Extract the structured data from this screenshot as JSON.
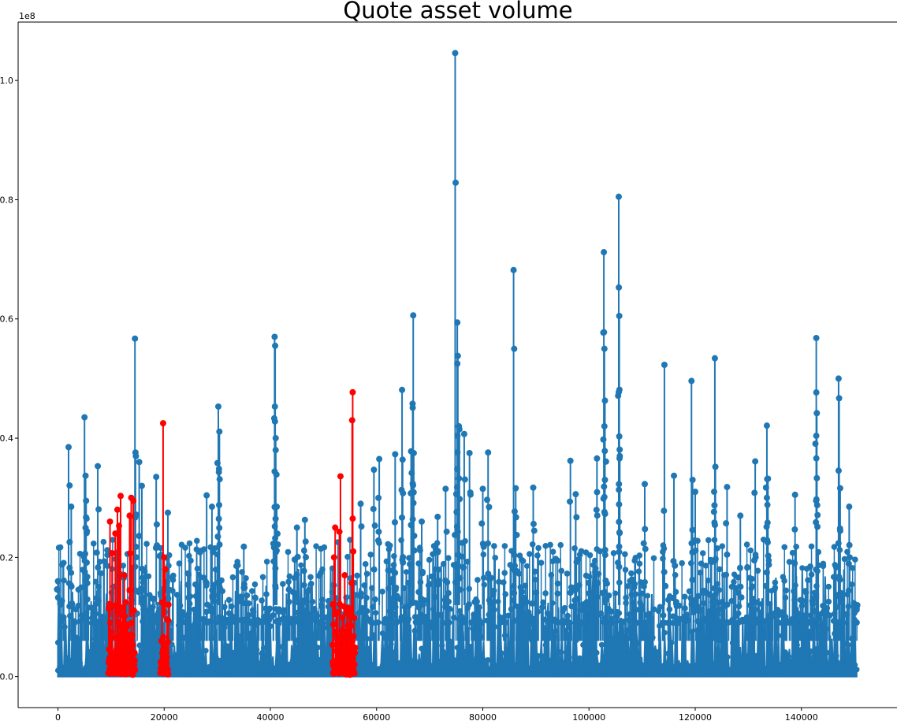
{
  "chart_data": {
    "type": "line",
    "title": "Quote asset volume",
    "xlabel": "",
    "ylabel": "",
    "y_offset_label": "1e8",
    "xlim": [
      -7500,
      158000
    ],
    "ylim": [
      -0.052,
      1.098
    ],
    "x_ticks": [
      0,
      20000,
      40000,
      60000,
      80000,
      100000,
      120000,
      140000
    ],
    "x_tick_labels": [
      "0",
      "20000",
      "40000",
      "60000",
      "80000",
      "100000",
      "120000",
      "140000"
    ],
    "y_ticks": [
      0.0,
      0.2,
      0.4,
      0.6,
      0.8,
      1.0
    ],
    "y_tick_labels": [
      "0.0",
      "0.2",
      "0.4",
      "0.6",
      "0.8",
      "1.0"
    ],
    "grid": false,
    "series_color": "#1f77b4",
    "highlight_color": "#ff0000",
    "x_range": [
      0,
      150500
    ],
    "series": [
      {
        "name": "",
        "color": "#1f77b4",
        "marker": "circle",
        "peaks": [
          [
            0,
            0.16
          ],
          [
            2000,
            0.385
          ],
          [
            2500,
            0.285
          ],
          [
            5000,
            0.435
          ],
          [
            5200,
            0.337
          ],
          [
            5300,
            0.295
          ],
          [
            7500,
            0.353
          ],
          [
            14500,
            0.567
          ],
          [
            14600,
            0.376
          ],
          [
            15300,
            0.36
          ],
          [
            15800,
            0.32
          ],
          [
            18500,
            0.335
          ],
          [
            20700,
            0.275
          ],
          [
            28000,
            0.304
          ],
          [
            29000,
            0.285
          ],
          [
            30200,
            0.453
          ],
          [
            30400,
            0.411
          ],
          [
            30300,
            0.343
          ],
          [
            35000,
            0.218
          ],
          [
            40800,
            0.57
          ],
          [
            40900,
            0.555
          ],
          [
            40850,
            0.453
          ],
          [
            41000,
            0.4
          ],
          [
            41000,
            0.38
          ],
          [
            41200,
            0.285
          ],
          [
            45000,
            0.25
          ],
          [
            46500,
            0.263
          ],
          [
            57000,
            0.29
          ],
          [
            59500,
            0.347
          ],
          [
            60500,
            0.365
          ],
          [
            63500,
            0.373
          ],
          [
            64800,
            0.481
          ],
          [
            64900,
            0.364
          ],
          [
            66500,
            0.378
          ],
          [
            66900,
            0.606
          ],
          [
            66800,
            0.451
          ],
          [
            67000,
            0.375
          ],
          [
            68500,
            0.26
          ],
          [
            71500,
            0.268
          ],
          [
            73000,
            0.315
          ],
          [
            74800,
            1.046
          ],
          [
            75200,
            0.594
          ],
          [
            75300,
            0.538
          ],
          [
            75200,
            0.525
          ],
          [
            75500,
            0.42
          ],
          [
            75600,
            0.415
          ],
          [
            76500,
            0.407
          ],
          [
            77500,
            0.375
          ],
          [
            80000,
            0.315
          ],
          [
            81000,
            0.376
          ],
          [
            85800,
            0.682
          ],
          [
            86200,
            0.316
          ],
          [
            86000,
            0.277
          ],
          [
            89500,
            0.317
          ],
          [
            96500,
            0.362
          ],
          [
            97500,
            0.306
          ],
          [
            101500,
            0.366
          ],
          [
            102800,
            0.712
          ],
          [
            102900,
            0.55
          ],
          [
            103000,
            0.463
          ],
          [
            102900,
            0.42
          ],
          [
            103000,
            0.33
          ],
          [
            105600,
            0.805
          ],
          [
            105700,
            0.605
          ],
          [
            105600,
            0.477
          ],
          [
            105700,
            0.403
          ],
          [
            105800,
            0.37
          ],
          [
            110500,
            0.323
          ],
          [
            114200,
            0.523
          ],
          [
            116000,
            0.337
          ],
          [
            119300,
            0.496
          ],
          [
            119500,
            0.33
          ],
          [
            120000,
            0.31
          ],
          [
            123700,
            0.534
          ],
          [
            123800,
            0.352
          ],
          [
            126000,
            0.318
          ],
          [
            128500,
            0.27
          ],
          [
            131300,
            0.361
          ],
          [
            133500,
            0.421
          ],
          [
            133700,
            0.332
          ],
          [
            133500,
            0.3
          ],
          [
            138800,
            0.305
          ],
          [
            142800,
            0.568
          ],
          [
            142900,
            0.442
          ],
          [
            142800,
            0.404
          ],
          [
            142900,
            0.333
          ],
          [
            147000,
            0.5
          ],
          [
            147100,
            0.467
          ],
          [
            147300,
            0.316
          ],
          [
            149000,
            0.285
          ],
          [
            150400,
            0.112
          ]
        ]
      },
      {
        "name": "",
        "color": "#ff0000",
        "marker": "circle",
        "ranges": [
          [
            9500,
            14500
          ],
          [
            19300,
            20800
          ],
          [
            51700,
            56000
          ]
        ],
        "peaks": [
          [
            9800,
            0.26
          ],
          [
            10200,
            0.207
          ],
          [
            10800,
            0.24
          ],
          [
            11200,
            0.28
          ],
          [
            11500,
            0.253
          ],
          [
            11800,
            0.303
          ],
          [
            12500,
            0.17
          ],
          [
            13500,
            0.27
          ],
          [
            13800,
            0.3
          ],
          [
            14200,
            0.295
          ],
          [
            13600,
            0.207
          ],
          [
            13500,
            0.145
          ],
          [
            19800,
            0.425
          ],
          [
            20000,
            0.2
          ],
          [
            20200,
            0.18
          ],
          [
            52200,
            0.25
          ],
          [
            52000,
            0.2
          ],
          [
            53200,
            0.336
          ],
          [
            53000,
            0.243
          ],
          [
            54000,
            0.17
          ],
          [
            55500,
            0.477
          ],
          [
            55400,
            0.43
          ],
          [
            55500,
            0.265
          ],
          [
            55600,
            0.21
          ],
          [
            55300,
            0.157
          ]
        ]
      }
    ]
  }
}
